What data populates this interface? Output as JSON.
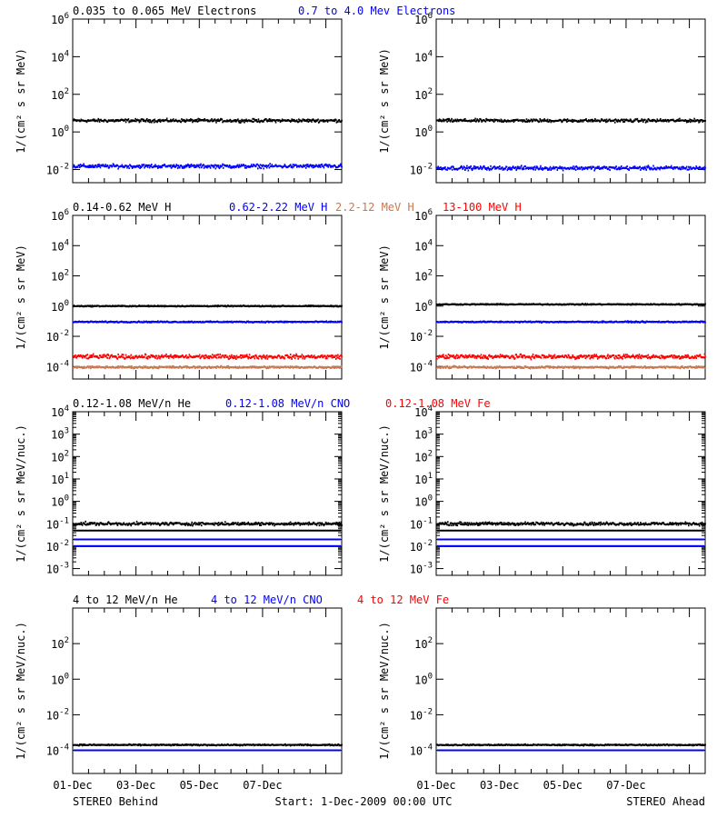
{
  "colors": {
    "black": "#000000",
    "blue": "#0000ff",
    "salmon": "#c87850",
    "red": "#ff0000"
  },
  "footer": {
    "left": "STEREO Behind",
    "center": "Start:  1-Dec-2009 00:00 UTC",
    "right": "STEREO Ahead"
  },
  "x_tick_labels": [
    "01-Dec",
    "03-Dec",
    "05-Dec",
    "07-Dec"
  ],
  "chart_data": [
    {
      "type": "scatter",
      "row": 1,
      "titles": [
        {
          "text": "0.035 to 0.065 MeV Electrons",
          "color": "#000000"
        },
        {
          "text": "0.7 to 4.0 Mev Electrons",
          "color": "#0000ff"
        }
      ],
      "ylabel": "1/(cm² s sr MeV)",
      "yscale": "log",
      "ylim": [
        0.002,
        1000000
      ],
      "y_ticks": [
        {
          "base": "10",
          "exp": "6"
        },
        {
          "base": "10",
          "exp": "4"
        },
        {
          "base": "10",
          "exp": "2"
        },
        {
          "base": "10",
          "exp": "0"
        },
        {
          "base": "10",
          "exp": "-2"
        }
      ],
      "y_tick_values": [
        1000000,
        10000,
        100,
        1,
        0.01
      ],
      "xlim_days": [
        0,
        8.5
      ],
      "panels": [
        {
          "spacecraft": "STEREO Behind",
          "series": [
            {
              "color": "#000000",
              "level": 4.0,
              "scatter": 0.12
            },
            {
              "color": "#0000ff",
              "level": 0.015,
              "scatter": 0.15
            }
          ]
        },
        {
          "spacecraft": "STEREO Ahead",
          "series": [
            {
              "color": "#000000",
              "level": 4.0,
              "scatter": 0.12
            },
            {
              "color": "#0000ff",
              "level": 0.012,
              "scatter": 0.15
            }
          ]
        }
      ]
    },
    {
      "type": "scatter",
      "row": 2,
      "titles": [
        {
          "text": "0.14-0.62 MeV H",
          "color": "#000000"
        },
        {
          "text": "0.62-2.22 MeV H",
          "color": "#0000ff"
        },
        {
          "text": "2.2-12 MeV H",
          "color": "#c87850"
        },
        {
          "text": "13-100 MeV H",
          "color": "#ff0000"
        }
      ],
      "ylabel": "1/(cm² s sr MeV)",
      "yscale": "log",
      "ylim": [
        1.5e-05,
        1000000
      ],
      "y_ticks": [
        {
          "base": "10",
          "exp": "6"
        },
        {
          "base": "10",
          "exp": "4"
        },
        {
          "base": "10",
          "exp": "2"
        },
        {
          "base": "10",
          "exp": "0"
        },
        {
          "base": "10",
          "exp": "-2"
        },
        {
          "base": "10",
          "exp": "-4"
        }
      ],
      "y_tick_values": [
        1000000,
        10000,
        100,
        1,
        0.01,
        0.0001
      ],
      "xlim_days": [
        0,
        8.5
      ],
      "panels": [
        {
          "spacecraft": "STEREO Behind",
          "series": [
            {
              "color": "#000000",
              "level": 1.0,
              "scatter": 0.05
            },
            {
              "color": "#0000ff",
              "level": 0.09,
              "scatter": 0.06
            },
            {
              "color": "#ff0000",
              "level": 0.00045,
              "scatter": 0.2
            },
            {
              "color": "#c87850",
              "level": 9e-05,
              "scatter": 0.1
            }
          ]
        },
        {
          "spacecraft": "STEREO Ahead",
          "series": [
            {
              "color": "#000000",
              "level": 1.3,
              "scatter": 0.05
            },
            {
              "color": "#0000ff",
              "level": 0.09,
              "scatter": 0.06
            },
            {
              "color": "#ff0000",
              "level": 0.00045,
              "scatter": 0.2
            },
            {
              "color": "#c87850",
              "level": 9e-05,
              "scatter": 0.1
            }
          ]
        }
      ]
    },
    {
      "type": "scatter",
      "row": 3,
      "titles": [
        {
          "text": "0.12-1.08 MeV/n He",
          "color": "#000000"
        },
        {
          "text": "0.12-1.08 MeV/n CNO",
          "color": "#0000ff"
        },
        {
          "text": "0.12-1.08 MeV Fe",
          "color": "#ff0000"
        }
      ],
      "ylabel": "1/(cm² s sr MeV/nuc.)",
      "yscale": "log",
      "ylim": [
        0.0005,
        10000
      ],
      "y_ticks": [
        {
          "base": "10",
          "exp": "4"
        },
        {
          "base": "10",
          "exp": "3"
        },
        {
          "base": "10",
          "exp": "2"
        },
        {
          "base": "10",
          "exp": "1"
        },
        {
          "base": "10",
          "exp": "0"
        },
        {
          "base": "10",
          "exp": "-1"
        },
        {
          "base": "10",
          "exp": "-2"
        },
        {
          "base": "10",
          "exp": "-3"
        }
      ],
      "y_tick_values": [
        10000,
        1000,
        100,
        10,
        1,
        0.1,
        0.01,
        0.001
      ],
      "xlim_days": [
        0,
        8.5
      ],
      "panels": [
        {
          "spacecraft": "STEREO Behind",
          "series": [
            {
              "color": "#000000",
              "level": 0.1,
              "scatter": 0.1
            },
            {
              "color": "#000000",
              "level": 0.05,
              "scatter": 0.0
            },
            {
              "color": "#0000ff",
              "level": 0.02,
              "scatter": 0.0
            },
            {
              "color": "#ff0000",
              "level": 0.01,
              "scatter": 0.0
            },
            {
              "color": "#0000ff",
              "level": 0.01,
              "scatter": 0.0
            }
          ]
        },
        {
          "spacecraft": "STEREO Ahead",
          "series": [
            {
              "color": "#000000",
              "level": 0.1,
              "scatter": 0.1
            },
            {
              "color": "#000000",
              "level": 0.05,
              "scatter": 0.0
            },
            {
              "color": "#0000ff",
              "level": 0.02,
              "scatter": 0.0
            },
            {
              "color": "#ff0000",
              "level": 0.01,
              "scatter": 0.0
            },
            {
              "color": "#0000ff",
              "level": 0.01,
              "scatter": 0.0
            }
          ]
        }
      ]
    },
    {
      "type": "scatter",
      "row": 4,
      "titles": [
        {
          "text": "4 to 12 MeV/n He",
          "color": "#000000"
        },
        {
          "text": "4 to 12 MeV/n CNO",
          "color": "#0000ff"
        },
        {
          "text": "4 to 12 MeV Fe",
          "color": "#ff0000"
        }
      ],
      "ylabel": "1/(cm² s sr MeV/nuc.)",
      "yscale": "log",
      "ylim": [
        5e-06,
        10000
      ],
      "y_ticks": [
        {
          "base": "10",
          "exp": "2"
        },
        {
          "base": "10",
          "exp": "0"
        },
        {
          "base": "10",
          "exp": "-2"
        },
        {
          "base": "10",
          "exp": "-4"
        }
      ],
      "y_tick_values": [
        100,
        1,
        0.01,
        0.0001
      ],
      "xlim_days": [
        0,
        8.5
      ],
      "panels": [
        {
          "spacecraft": "STEREO Behind",
          "series": [
            {
              "color": "#0000ff",
              "level": 0.0001,
              "scatter": 0.0
            },
            {
              "color": "#000000",
              "level": 0.0002,
              "scatter": 0.05
            }
          ]
        },
        {
          "spacecraft": "STEREO Ahead",
          "series": [
            {
              "color": "#0000ff",
              "level": 0.0001,
              "scatter": 0.0
            },
            {
              "color": "#000000",
              "level": 0.0002,
              "scatter": 0.05
            }
          ]
        }
      ]
    }
  ]
}
